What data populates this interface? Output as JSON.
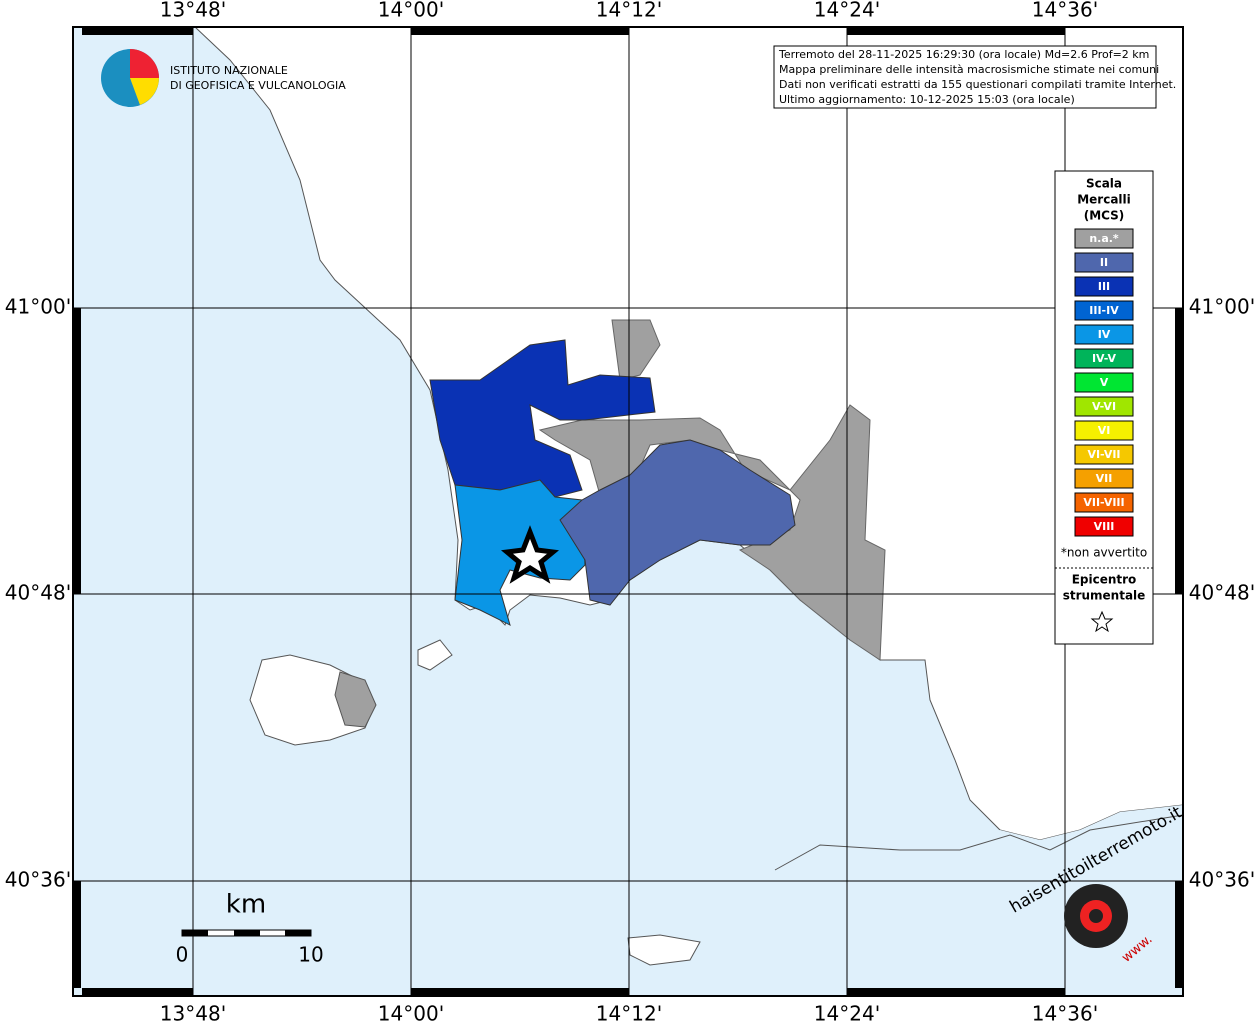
{
  "map": {
    "lon_labels": [
      "13°48'",
      "14°00'",
      "14°12'",
      "14°24'",
      "14°36'"
    ],
    "lat_labels": [
      "41°00'",
      "40°48'",
      "40°36'"
    ],
    "info": [
      "Terremoto del 28-11-2025 16:29:30 (ora locale) Md=2.6 Prof=2 km",
      "Mappa preliminare delle intensità macrosismiche stimate nei comuni",
      "Dati non verificati estratti da 155 questionari compilati tramite Internet.",
      "Ultimo aggiornamento: 10-12-2025 15:03 (ora locale)"
    ],
    "logo": [
      "ISTITUTO NAZIONALE",
      "DI GEOFISICA E VULCANOLOGIA"
    ],
    "legend": {
      "title": [
        "Scala",
        "Mercalli",
        "(MCS)"
      ],
      "items": [
        {
          "label": "n.a.*",
          "color": "#a0a0a0"
        },
        {
          "label": "II",
          "color": "#4f67ad"
        },
        {
          "label": "III",
          "color": "#0a32b4"
        },
        {
          "label": "III-IV",
          "color": "#0064d2"
        },
        {
          "label": "IV",
          "color": "#0a96e6"
        },
        {
          "label": "IV-V",
          "color": "#00b45a"
        },
        {
          "label": "V",
          "color": "#00e632"
        },
        {
          "label": "V-VI",
          "color": "#a0e600"
        },
        {
          "label": "VI",
          "color": "#f5f000"
        },
        {
          "label": "VI-VII",
          "color": "#f5c800"
        },
        {
          "label": "VII",
          "color": "#f5a000"
        },
        {
          "label": "VII-VIII",
          "color": "#f56400"
        },
        {
          "label": "VIII",
          "color": "#f00000"
        }
      ],
      "note": "*non avvertito",
      "epicenter": [
        "Epicentro",
        "strumentale"
      ]
    },
    "scale": {
      "unit": "km",
      "labels": [
        "0",
        "10"
      ]
    },
    "watermark": {
      "site": "haisentitoilterremoto.it",
      "prefix": "www."
    }
  }
}
